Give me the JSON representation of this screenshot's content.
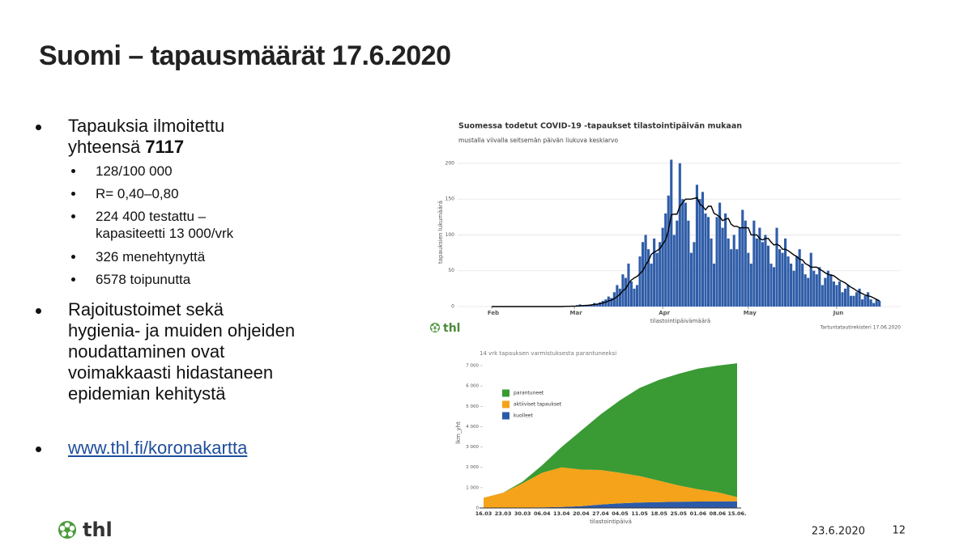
{
  "slide": {
    "title": "Suomi – tapausmäärät 17.6.2020",
    "bullets": [
      {
        "text": "Tapauksia ilmoitettu yhteensä",
        "bold": "7117",
        "sub": [
          "128/100 000",
          "R= 0,40–0,80",
          "224 400 testattu – kapasiteetti 13 000/vrk",
          "326 menehtynyttä",
          "6578 toipunutta"
        ]
      },
      {
        "text": "Rajoitustoimet sekä hygienia- ja muiden ohjeiden noudattaminen ovat voimakkaasti hidastaneen epidemian kehitystä"
      },
      {
        "link": "www.thl.fi/koronakartta"
      }
    ],
    "logo": "thl",
    "date": "23.6.2020",
    "page": "12"
  },
  "chart_data": [
    {
      "type": "bar",
      "title": "Suomessa todetut COVID-19 -tapaukset tilastointipäivän mukaan",
      "subtitle": "mustalla viivalla seitsemän päivän liukuva keskiarvo",
      "x_label": "tilastointipäivämäärä",
      "y_label": "tapauksien lukumäärä",
      "source": "Tartuntatautirekisteri 17.06.2020",
      "logo": "thl",
      "categories": [
        "Feb",
        null,
        null,
        null,
        null,
        null,
        null,
        null,
        null,
        null,
        null,
        null,
        null,
        null,
        null,
        null,
        null,
        null,
        null,
        null,
        null,
        null,
        null,
        null,
        null,
        null,
        null,
        null,
        null,
        "Mar",
        null,
        null,
        null,
        null,
        null,
        null,
        null,
        null,
        null,
        null,
        null,
        null,
        null,
        null,
        null,
        null,
        null,
        null,
        null,
        null,
        null,
        null,
        null,
        null,
        null,
        null,
        null,
        null,
        null,
        null,
        "Apr",
        null,
        null,
        null,
        null,
        null,
        null,
        null,
        null,
        null,
        null,
        null,
        null,
        null,
        null,
        null,
        null,
        null,
        null,
        null,
        null,
        null,
        null,
        null,
        null,
        null,
        null,
        null,
        null,
        null,
        "May",
        null,
        null,
        null,
        null,
        null,
        null,
        null,
        null,
        null,
        null,
        null,
        null,
        null,
        null,
        null,
        null,
        null,
        null,
        null,
        null,
        null,
        null,
        null,
        null,
        null,
        null,
        null,
        null,
        null,
        null,
        "Jun",
        null,
        null,
        null,
        null,
        null,
        null,
        null,
        null,
        null,
        null,
        null,
        null,
        null,
        null,
        null
      ],
      "series": [
        {
          "type": "bar",
          "color": "#2f5da8",
          "values": [
            0,
            0,
            0,
            0,
            0,
            0,
            0,
            0,
            0,
            0,
            0,
            0,
            0,
            0,
            0,
            0,
            0,
            0,
            0,
            0,
            0,
            0,
            0,
            0,
            0,
            1,
            0,
            1,
            1,
            1,
            2,
            3,
            1,
            2,
            2,
            3,
            5,
            4,
            6,
            8,
            10,
            14,
            12,
            20,
            30,
            25,
            45,
            40,
            60,
            35,
            25,
            30,
            70,
            90,
            100,
            80,
            60,
            95,
            75,
            90,
            110,
            130,
            155,
            205,
            100,
            120,
            200,
            150,
            145,
            120,
            75,
            90,
            170,
            150,
            160,
            130,
            125,
            95,
            60,
            125,
            145,
            110,
            130,
            95,
            80,
            100,
            80,
            110,
            135,
            120,
            75,
            60,
            120,
            95,
            110,
            90,
            100,
            85,
            60,
            55,
            110,
            80,
            75,
            95,
            70,
            60,
            50,
            70,
            80,
            60,
            45,
            40,
            75,
            50,
            45,
            55,
            30,
            40,
            50,
            45,
            35,
            30,
            35,
            20,
            25,
            30,
            15,
            15,
            20,
            25,
            10,
            15,
            20,
            10,
            5,
            10,
            8
          ]
        },
        {
          "type": "line",
          "color": "#000000",
          "values": [
            0,
            0,
            0,
            0,
            0,
            0,
            0,
            0,
            0,
            0,
            0,
            0,
            0,
            0,
            0,
            0,
            0,
            0,
            0,
            0,
            0,
            0,
            0,
            0,
            0,
            0.1,
            0.3,
            0.4,
            0.5,
            0.5,
            0.8,
            1,
            1.3,
            1.6,
            1.9,
            2.3,
            2.9,
            3.4,
            4,
            5,
            6,
            8,
            9,
            11,
            14,
            17,
            22,
            25,
            32,
            37,
            40,
            42,
            46,
            50,
            58,
            64,
            73,
            76,
            78,
            81,
            87,
            93,
            106,
            128,
            129,
            129,
            140,
            145,
            150,
            150,
            150,
            151,
            152,
            143,
            140,
            135,
            140,
            140,
            130,
            128,
            125,
            120,
            122,
            123,
            115,
            112,
            112,
            110,
            110,
            110,
            110,
            100,
            100,
            100,
            95,
            93,
            95,
            95,
            90,
            86,
            87,
            85,
            80,
            80,
            78,
            75,
            72,
            70,
            66,
            65,
            60,
            58,
            55,
            55,
            55,
            52,
            50,
            47,
            45,
            44,
            43,
            40,
            37,
            35,
            33,
            30,
            27,
            25,
            22,
            20,
            18,
            16,
            15,
            14,
            12,
            10,
            8
          ]
        }
      ],
      "ylim": [
        0,
        210
      ],
      "yticks": [
        0,
        50,
        100,
        150,
        200
      ],
      "grid": true
    },
    {
      "type": "area",
      "stacked": true,
      "title": "14 vrk tapauksen varmistuksesta parantuneeksi",
      "x_label": "tilastointipäivä",
      "y_label": "lkm_yht",
      "categories": [
        "16.03",
        "23.03",
        "30.03",
        "06.04",
        "13.04",
        "20.04",
        "27.04",
        "04.05",
        "11.05",
        "18.05",
        "25.05",
        "01.06",
        "08.06",
        "15.06."
      ],
      "series": [
        {
          "name": "parantuneet",
          "color": "#3a9a34",
          "values": [
            0,
            5,
            85,
            370,
            1000,
            1910,
            2730,
            3570,
            4330,
            4960,
            5490,
            5930,
            6225,
            6578
          ]
        },
        {
          "name": "aktiiviset tapaukset",
          "color": "#f5a31a",
          "values": [
            500,
            740,
            1200,
            1700,
            1950,
            1800,
            1700,
            1500,
            1300,
            1050,
            800,
            600,
            450,
            213
          ]
        },
        {
          "name": "kuolleet",
          "color": "#2c5aa8",
          "values": [
            0,
            5,
            15,
            30,
            50,
            90,
            170,
            230,
            270,
            290,
            310,
            320,
            325,
            326
          ]
        }
      ],
      "ylim": [
        0,
        7200
      ],
      "yticks": [
        0,
        {
          "value": 1000,
          "label": "1 000"
        },
        {
          "value": 2000,
          "label": "2 000"
        },
        {
          "value": 3000,
          "label": "3 000"
        },
        {
          "value": 4000,
          "label": "4 000"
        },
        {
          "value": 5000,
          "label": "5 000"
        },
        {
          "value": 6000,
          "label": "6 000"
        },
        {
          "value": 7000,
          "label": "7 000"
        }
      ],
      "legend": "upper left"
    }
  ]
}
